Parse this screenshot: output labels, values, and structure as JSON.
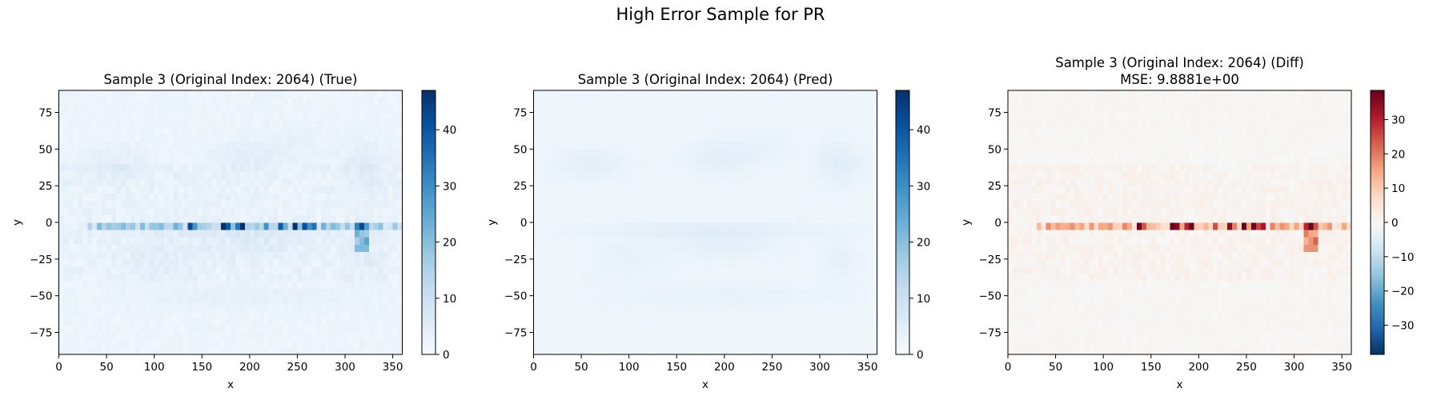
{
  "suptitle": "High Error Sample for PR",
  "chart_data": [
    {
      "type": "heatmap",
      "title": "Sample 3 (Original Index: 2064) (True)",
      "xlabel": "x",
      "ylabel": "y",
      "xlim": [
        0,
        360
      ],
      "ylim": [
        -90,
        90
      ],
      "xticks": [
        0,
        50,
        100,
        150,
        200,
        250,
        300,
        350
      ],
      "yticks": [
        -75,
        -50,
        -25,
        0,
        25,
        50,
        75
      ],
      "colormap": "Blues",
      "colorbar": {
        "range": [
          0,
          47
        ],
        "ticks": [
          0,
          10,
          20,
          30,
          40
        ]
      },
      "grid": false
    },
    {
      "type": "heatmap",
      "title": "Sample 3 (Original Index: 2064) (Pred)",
      "xlabel": "x",
      "ylabel": "y",
      "xlim": [
        0,
        360
      ],
      "ylim": [
        -90,
        90
      ],
      "xticks": [
        0,
        50,
        100,
        150,
        200,
        250,
        300,
        350
      ],
      "yticks": [
        -75,
        -50,
        -25,
        0,
        25,
        50,
        75
      ],
      "colormap": "Blues",
      "colorbar": {
        "range": [
          0,
          47
        ],
        "ticks": [
          0,
          10,
          20,
          30,
          40
        ]
      },
      "grid": false
    },
    {
      "type": "heatmap",
      "title": "Sample 3 (Original Index: 2064) (Diff)",
      "subtitle": "MSE: 9.8881e+00",
      "xlabel": "x",
      "ylabel": "y",
      "xlim": [
        0,
        360
      ],
      "ylim": [
        -90,
        90
      ],
      "xticks": [
        0,
        50,
        100,
        150,
        200,
        250,
        300,
        350
      ],
      "yticks": [
        -75,
        -50,
        -25,
        0,
        25,
        50,
        75
      ],
      "colormap": "RdBu_r",
      "colorbar": {
        "range": [
          -38.5,
          38.5
        ],
        "ticks": [
          -30,
          -20,
          -10,
          0,
          10,
          20,
          30
        ]
      },
      "grid": false
    }
  ]
}
